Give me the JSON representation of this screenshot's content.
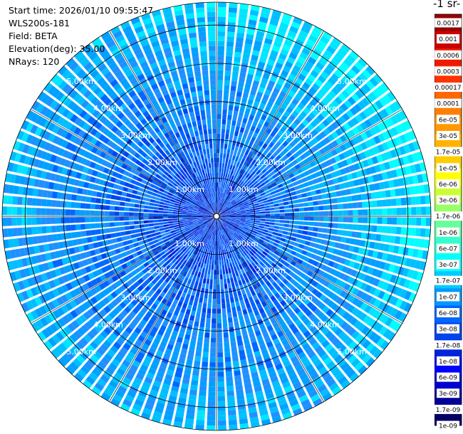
{
  "info": {
    "start_time": "Start time: 2026/01/10 09:55:47",
    "instrument": "WLS200s-181",
    "field": "Field: BETA",
    "elevation": "Elevation(deg): 35.00",
    "nrays": "NRays: 120"
  },
  "colorbar": {
    "units_label": "-1 sr-",
    "levels": [
      "0.0017",
      "0.001",
      "0.0006",
      "0.0003",
      "0.00017",
      "0.0001",
      "6e-05",
      "3e-05",
      "1.7e-05",
      "1e-05",
      "6e-06",
      "3e-06",
      "1.7e-06",
      "1e-06",
      "6e-07",
      "3e-07",
      "1.7e-07",
      "1e-07",
      "6e-08",
      "3e-08",
      "1.7e-08",
      "1e-08",
      "6e-09",
      "3e-09",
      "1.7e-09",
      "1e-09"
    ],
    "colors": [
      "#990000",
      "#cc0000",
      "#ee1a00",
      "#ff3300",
      "#ff6600",
      "#ff7f00",
      "#ff9900",
      "#ffb300",
      "#ffcc00",
      "#ffff00",
      "#ccff33",
      "#99ff66",
      "#66ff99",
      "#33ffcc",
      "#00ffff",
      "#00ccff",
      "#0099ff",
      "#0066ff",
      "#0044ee",
      "#0022dd",
      "#0000ff",
      "#0000cc",
      "#000099",
      "#000066"
    ]
  },
  "chart_data": {
    "type": "ppi",
    "title": "",
    "xlabel": "",
    "ylabel": "",
    "grid": true,
    "max_range_km": 5.6,
    "range_rings_km": [
      1.0,
      2.0,
      3.0,
      4.0,
      5.0
    ],
    "ring_labels": [
      "1.00km",
      "2.00km",
      "3.00km",
      "4.00km",
      "5.00km"
    ],
    "label_azimuths_deg": [
      315,
      45,
      225,
      135
    ],
    "nrays": 120,
    "range_gates": 44,
    "dominant_value_range": [
      "3e-08",
      "1e-07"
    ]
  }
}
